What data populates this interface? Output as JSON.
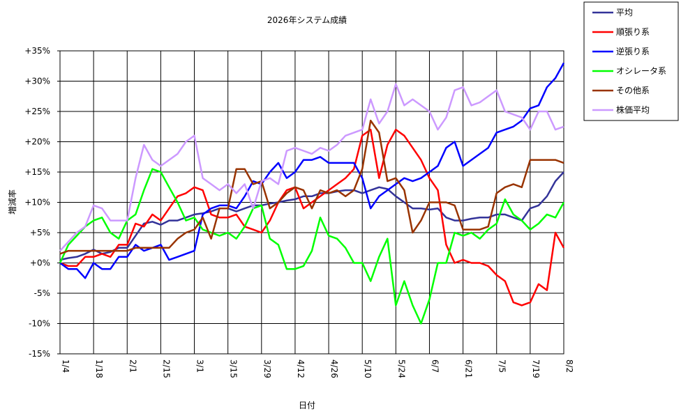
{
  "chart_data": {
    "type": "line",
    "title": "2026年システム成績",
    "x_label": "日付",
    "y_label": "増減率",
    "categories": [
      "1/4",
      null,
      null,
      null,
      "1/18",
      null,
      null,
      null,
      "2/1",
      null,
      null,
      null,
      "2/15",
      null,
      null,
      null,
      "3/1",
      null,
      null,
      null,
      "3/15",
      null,
      null,
      null,
      "3/29",
      null,
      null,
      null,
      "4/12",
      null,
      null,
      null,
      "4/26",
      null,
      null,
      null,
      "5/10",
      null,
      null,
      null,
      "5/24",
      null,
      null,
      null,
      "6/7",
      null,
      null,
      null,
      "6/21",
      null,
      null,
      null,
      "7/5",
      null,
      null,
      null,
      "7/19",
      null,
      null,
      null,
      "8/2"
    ],
    "ylim": [
      -15,
      35
    ],
    "yticks": [
      {
        "value": -15,
        "label": "-15%"
      },
      {
        "value": -10,
        "label": "-10%"
      },
      {
        "value": -5,
        "label": "-5%"
      },
      {
        "value": 0,
        "label": "+0%"
      },
      {
        "value": 5,
        "label": "+5%"
      },
      {
        "value": 10,
        "label": "+10%"
      },
      {
        "value": 15,
        "label": "+15%"
      },
      {
        "value": 20,
        "label": "+20%"
      },
      {
        "value": 25,
        "label": "+25%"
      },
      {
        "value": 30,
        "label": "+30%"
      },
      {
        "value": 35,
        "label": "+35%"
      }
    ],
    "grid": true,
    "legend": "right",
    "series": [
      {
        "name": "平均",
        "color": "#333399",
        "values": [
          0.5,
          0.8,
          1,
          1.5,
          2.2,
          1.5,
          1.8,
          2.5,
          2.5,
          4.5,
          6.5,
          6.8,
          6.3,
          7,
          7,
          7.5,
          8,
          8.2,
          8.5,
          9,
          9,
          8.5,
          9,
          9.5,
          9.5,
          9.8,
          10,
          10.3,
          10.5,
          11,
          11,
          11.5,
          11.5,
          11.8,
          12,
          12,
          11.5,
          12,
          12.5,
          12.2,
          11,
          10,
          9,
          9,
          8.8,
          9,
          7.5,
          7,
          7,
          7.3,
          7.5,
          7.5,
          8,
          8,
          7.5,
          7,
          9,
          9.5,
          11,
          13.5,
          15
        ]
      },
      {
        "name": "順張り系",
        "color": "#ff0000",
        "values": [
          0,
          -0.5,
          -0.5,
          1,
          1,
          1.5,
          1,
          3,
          3,
          6.5,
          6,
          8,
          7,
          9,
          11,
          11.5,
          12.5,
          12,
          8,
          7.5,
          7.5,
          8,
          6,
          5.5,
          5,
          7,
          10,
          12,
          12.5,
          9,
          10,
          11,
          12,
          13,
          14,
          15.5,
          21,
          22,
          14,
          19.5,
          22,
          21,
          19,
          17,
          14,
          12,
          3,
          0,
          0.5,
          0,
          0,
          -0.5,
          -2,
          -3,
          -6.5,
          -7,
          -6.5,
          -3.5,
          -4.5,
          5,
          2.5
        ]
      },
      {
        "name": "逆張り系",
        "color": "#0000ff",
        "values": [
          0,
          -1,
          -1,
          -2.5,
          0,
          -1,
          -1,
          1,
          1,
          3,
          2,
          2.5,
          3,
          0.5,
          1,
          1.5,
          2,
          8,
          9,
          9.5,
          9.5,
          9,
          11,
          13.5,
          13,
          15,
          16.5,
          14,
          15,
          17,
          17,
          17.5,
          16.5,
          16.5,
          16.5,
          16.5,
          14,
          9,
          11,
          12,
          13,
          14,
          13.5,
          14,
          15,
          16,
          19,
          20,
          16,
          17,
          18,
          19,
          21.5,
          22,
          22.5,
          23.5,
          25.5,
          26,
          29,
          30.5,
          33
        ]
      },
      {
        "name": "オシレータ系",
        "color": "#00ff00",
        "values": [
          0,
          3,
          4.5,
          6,
          7,
          7.5,
          5,
          4,
          7,
          8,
          12,
          15.5,
          15,
          12.5,
          10,
          7,
          7.5,
          5.5,
          5,
          4.5,
          5,
          4,
          6,
          9,
          9.5,
          4,
          3,
          -1,
          -1,
          -0.5,
          2,
          7.5,
          4.5,
          4,
          2.5,
          0,
          0,
          -3,
          1,
          4,
          -7,
          -3,
          -7,
          -10,
          -6,
          0,
          0,
          5,
          4.5,
          5,
          4,
          5.5,
          6.5,
          10.5,
          8,
          7,
          5.5,
          6.5,
          8,
          7.5,
          10
        ]
      },
      {
        "name": "その他系",
        "color": "#993300",
        "values": [
          1.5,
          2,
          2,
          2,
          2,
          2,
          2,
          2,
          2,
          2.5,
          2.5,
          2.5,
          2.5,
          2.5,
          4,
          5,
          5.5,
          7.5,
          4,
          9,
          9,
          15.5,
          15.5,
          13,
          13.5,
          9,
          10,
          11.5,
          12.5,
          12,
          9,
          12,
          11.5,
          12,
          11,
          12,
          15.5,
          23.5,
          21.5,
          13.5,
          14,
          12,
          5,
          7,
          10,
          10,
          10,
          9.5,
          5.5,
          5.5,
          5.5,
          6,
          11.5,
          12.5,
          13,
          12.5,
          17,
          17,
          17,
          17,
          16.5
        ]
      },
      {
        "name": "株価平均",
        "color": "#cc99ff",
        "values": [
          2,
          3.5,
          5,
          6,
          9.5,
          9,
          7,
          7,
          7,
          14,
          19.5,
          17,
          16,
          17,
          18,
          20,
          21,
          14,
          13,
          12,
          13,
          11.5,
          13,
          9,
          13.5,
          14,
          13,
          18.5,
          19,
          18.5,
          18,
          19,
          18.5,
          19.5,
          21,
          21.5,
          22,
          27,
          23,
          25,
          29.5,
          26,
          27,
          26,
          25,
          22,
          24,
          28.5,
          29,
          26,
          26.5,
          27.5,
          28.5,
          25,
          24.5,
          24,
          22,
          25,
          25,
          22,
          22.5
        ]
      }
    ]
  }
}
